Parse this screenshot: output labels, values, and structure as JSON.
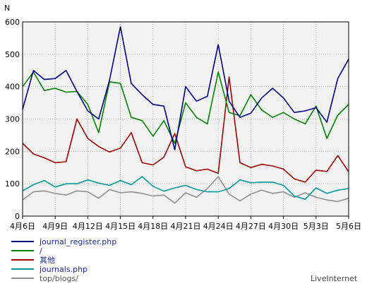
{
  "chart_data": {
    "type": "line",
    "ylabel": "N",
    "ylim": [
      0,
      600
    ],
    "yticks": [
      0,
      100,
      200,
      300,
      400,
      500,
      600
    ],
    "grid": true,
    "legend_position": "bottom-left",
    "x_tick_labels": [
      "4月6日",
      "4月9日",
      "4月12日",
      "4月15日",
      "4月18日",
      "4月21日",
      "4月24日",
      "4月27日",
      "4月30日",
      "5月3日",
      "5月6日"
    ],
    "x_tick_indices": [
      0,
      3,
      6,
      9,
      12,
      15,
      18,
      21,
      24,
      27,
      30
    ],
    "n_points": 31,
    "series": [
      {
        "name": "journal_register.php",
        "color": "#000080",
        "values": [
          330,
          450,
          422,
          425,
          450,
          385,
          325,
          300,
          420,
          585,
          410,
          375,
          345,
          340,
          205,
          400,
          355,
          370,
          530,
          355,
          305,
          318,
          365,
          395,
          365,
          320,
          325,
          335,
          290,
          425,
          485
        ]
      },
      {
        "name": "/",
        "color": "#008000",
        "values": [
          400,
          445,
          388,
          395,
          383,
          385,
          345,
          258,
          415,
          410,
          305,
          295,
          247,
          295,
          225,
          350,
          305,
          285,
          445,
          320,
          310,
          375,
          328,
          305,
          320,
          300,
          285,
          340,
          240,
          312,
          345
        ]
      },
      {
        "name": "其他",
        "color": "#990000",
        "values": [
          225,
          192,
          180,
          165,
          168,
          300,
          240,
          215,
          198,
          210,
          258,
          165,
          158,
          182,
          255,
          152,
          140,
          145,
          132,
          430,
          165,
          150,
          160,
          155,
          145,
          115,
          105,
          142,
          138,
          187,
          137
        ]
      },
      {
        "name": "journals.php",
        "color": "#009999",
        "values": [
          78,
          97,
          110,
          90,
          100,
          100,
          112,
          102,
          95,
          110,
          97,
          122,
          92,
          77,
          87,
          95,
          82,
          75,
          75,
          85,
          112,
          103,
          105,
          105,
          95,
          62,
          52,
          87,
          70,
          80,
          85
        ]
      },
      {
        "name": "top/blogs/",
        "color": "#909090",
        "values": [
          50,
          75,
          78,
          70,
          65,
          78,
          75,
          55,
          82,
          72,
          75,
          70,
          62,
          65,
          40,
          72,
          58,
          85,
          122,
          68,
          47,
          68,
          80,
          70,
          75,
          58,
          72,
          58,
          50,
          45,
          55
        ]
      }
    ]
  },
  "brand": "LiveInternet"
}
